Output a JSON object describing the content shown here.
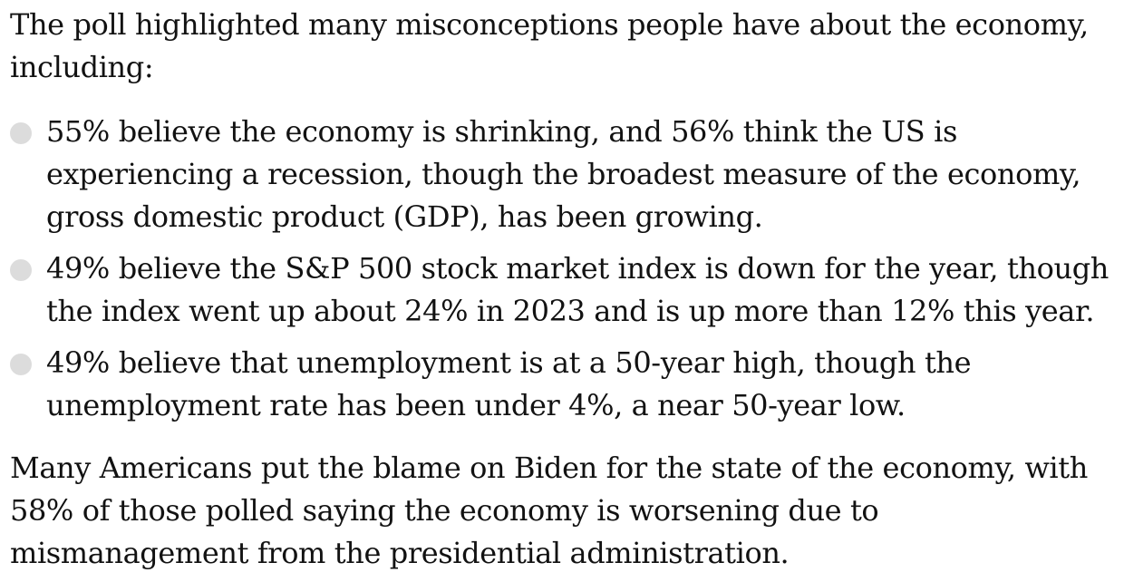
{
  "article": {
    "intro": "The poll highlighted many misconceptions people have about the economy, including:",
    "bullets": [
      {
        "text": "55% believe the economy is shrinking, and 56% think the US is experiencing a recession, though the broadest measure of the economy, gross domestic product (GDP), has been growing."
      },
      {
        "text": "49% believe the S&P 500 stock market index is down for the year, though the index went up about 24% in 2023 and is up more than 12% this year."
      },
      {
        "text": "49% believe that unemployment is at a 50-year high, though the unemployment rate has been under 4%, a near 50-year low."
      }
    ],
    "closing": "Many Americans put the blame on Biden for the state of the economy, with 58% of those polled saying the economy is worsening due to mismanagement from the presidential administration."
  },
  "colors": {
    "text": "#121212",
    "bullet": "#dcdcdc",
    "background": "#ffffff"
  }
}
